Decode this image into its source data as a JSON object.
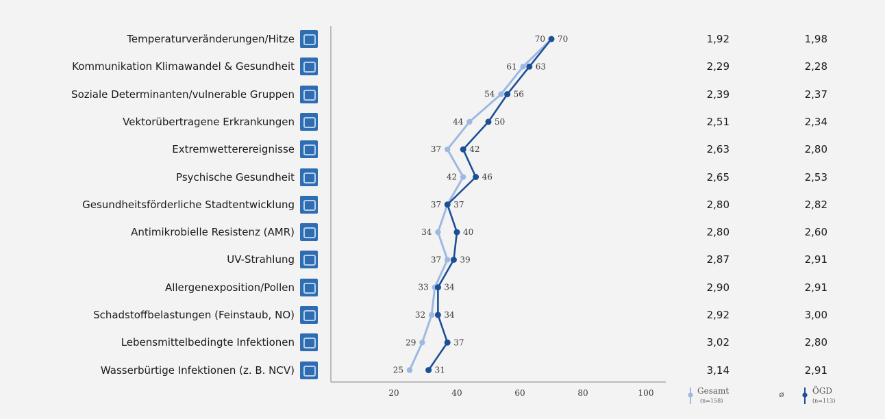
{
  "chart_data": {
    "type": "line",
    "categories": [
      "Temperaturveränderungen/Hitze",
      "Kommunikation Klimawandel & Gesundheit",
      "Soziale Determinanten/vulnerable Gruppen",
      "Vektorübertragene Erkrankungen",
      "Extremwetterereignisse",
      "Psychische Gesundheit",
      "Gesundheitsförderliche Stadtentwicklung",
      "Antimikrobielle Resistenz (AMR)",
      "UV-Strahlung",
      "Allergenexposition/Pollen",
      "Schadstoffbelastungen (Feinstaub, NO)",
      "Lebensmittelbedingte Infektionen",
      "Wasserbürtige Infektionen (z. B. NCV)"
    ],
    "series": [
      {
        "name": "Gesamt",
        "sublabel": "(n=158)",
        "color": "#9fb8e2",
        "values": [
          70,
          61,
          54,
          44,
          37,
          42,
          37,
          34,
          37,
          33,
          32,
          29,
          25
        ],
        "averages": [
          "1,92",
          "2,29",
          "2,39",
          "2,51",
          "2,63",
          "2,65",
          "2,80",
          "2,80",
          "2,87",
          "2,90",
          "2,92",
          "3,02",
          "3,14"
        ]
      },
      {
        "name": "ÖGD",
        "sublabel": "(n=113)",
        "color": "#1b4f96",
        "values": [
          70,
          63,
          56,
          50,
          42,
          46,
          37,
          40,
          39,
          34,
          34,
          37,
          31
        ],
        "averages": [
          "1,98",
          "2,28",
          "2,37",
          "2,34",
          "2,80",
          "2,53",
          "2,82",
          "2,60",
          "2,91",
          "2,91",
          "3,00",
          "2,80",
          "2,91"
        ]
      }
    ],
    "xticks": [
      "20",
      "40",
      "60",
      "80",
      "100"
    ],
    "xlim": [
      0,
      100
    ],
    "average_symbol": "ø",
    "legend_position": "bottom-right"
  }
}
